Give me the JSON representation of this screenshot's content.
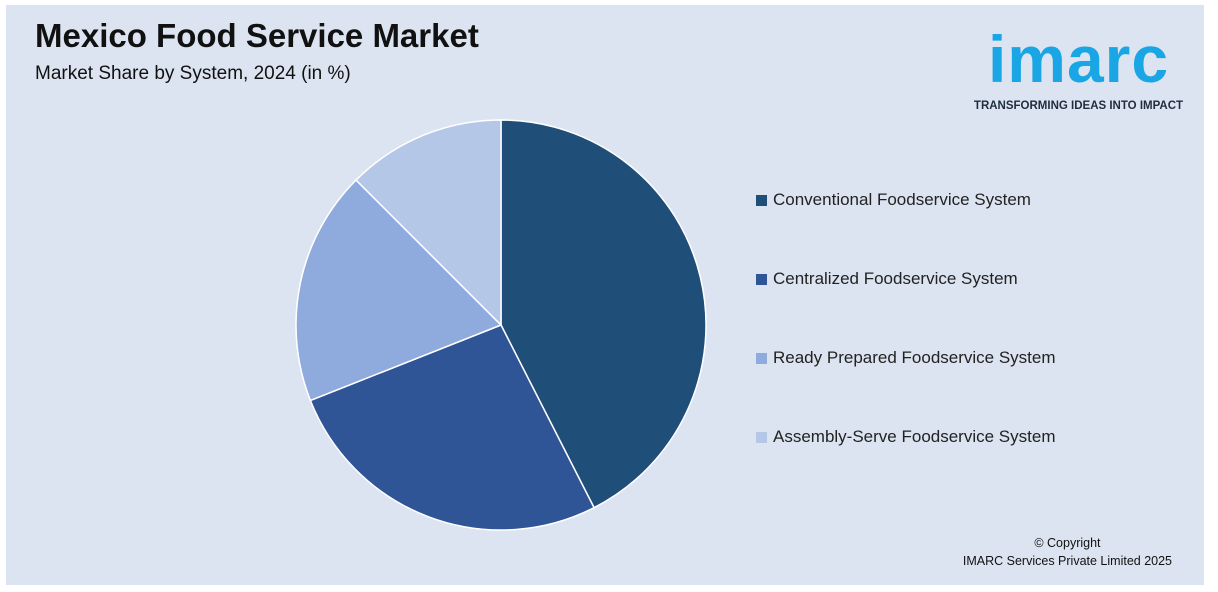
{
  "header": {
    "title": "Mexico Food Service Market",
    "subtitle": "Market Share by System, 2024 (in %)"
  },
  "logo": {
    "word": "imarc",
    "tagline": "TRANSFORMING IDEAS INTO IMPACT",
    "color": "#1aa6e4"
  },
  "footer": {
    "copyright": "© Copyright",
    "company": "IMARC Services Private Limited 2025"
  },
  "chart_data": {
    "type": "pie",
    "title": "Mexico Food Service Market",
    "subtitle": "Market Share by System, 2024 (in %)",
    "categories": [
      "Conventional Foodservice System",
      "Centralized Foodservice System",
      "Ready Prepared Foodservice System",
      "Assembly-Serve Foodservice System"
    ],
    "values": [
      42.5,
      26.5,
      18.5,
      12.5
    ],
    "colors": [
      "#1f4e79",
      "#2f5597",
      "#8faadc",
      "#b4c7e7"
    ],
    "start_angle_deg": 0,
    "direction": "clockwise",
    "legend_position": "right"
  }
}
